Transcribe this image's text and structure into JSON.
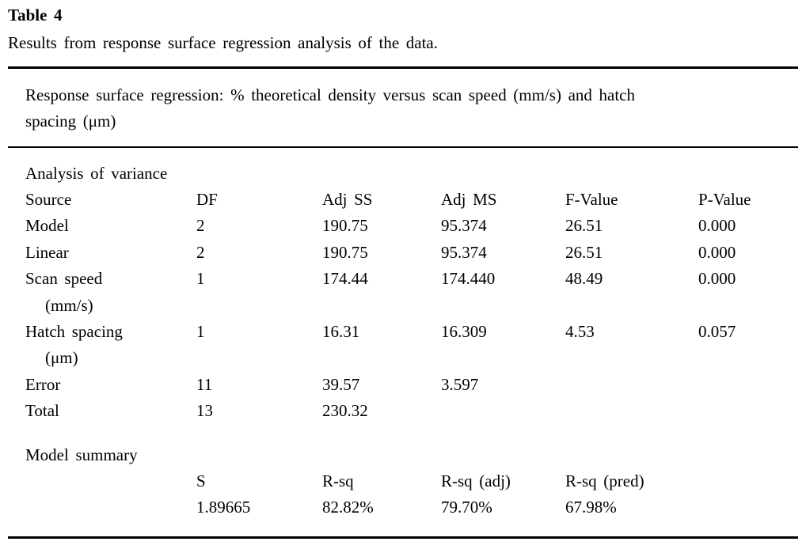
{
  "caption": {
    "label": "Table 4",
    "text": "Results from response surface regression analysis of the data."
  },
  "subtitle": {
    "line1": "Response surface regression: % theoretical density versus scan speed (mm/s) and hatch",
    "line2": "spacing (μm)"
  },
  "anova": {
    "title": "Analysis of variance",
    "columns": [
      "Source",
      "DF",
      "Adj SS",
      "Adj MS",
      "F-Value",
      "P-Value"
    ],
    "rows": [
      {
        "source": "Model",
        "unit": "",
        "df": "2",
        "adj_ss": "190.75",
        "adj_ms": "95.374",
        "f_value": "26.51",
        "p_value": "0.000"
      },
      {
        "source": "Linear",
        "unit": "",
        "df": "2",
        "adj_ss": "190.75",
        "adj_ms": "95.374",
        "f_value": "26.51",
        "p_value": "0.000"
      },
      {
        "source": "Scan speed",
        "unit": "(mm/s)",
        "df": "1",
        "adj_ss": "174.44",
        "adj_ms": "174.440",
        "f_value": "48.49",
        "p_value": "0.000"
      },
      {
        "source": "Hatch spacing",
        "unit": "(μm)",
        "df": "1",
        "adj_ss": "16.31",
        "adj_ms": "16.309",
        "f_value": "4.53",
        "p_value": "0.057"
      },
      {
        "source": "Error",
        "unit": "",
        "df": "11",
        "adj_ss": "39.57",
        "adj_ms": "3.597",
        "f_value": "",
        "p_value": ""
      },
      {
        "source": "Total",
        "unit": "",
        "df": "13",
        "adj_ss": "230.32",
        "adj_ms": "",
        "f_value": "",
        "p_value": ""
      }
    ]
  },
  "model_summary": {
    "title": "Model summary",
    "columns": [
      "S",
      "R-sq",
      "R-sq (adj)",
      "R-sq (pred)"
    ],
    "values": [
      "1.89665",
      "82.82%",
      "79.70%",
      "67.98%"
    ]
  },
  "colors": {
    "text": "#000000",
    "background": "#ffffff",
    "rule": "#000000"
  }
}
